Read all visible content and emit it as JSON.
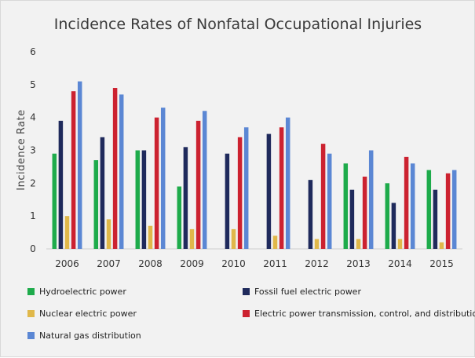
{
  "chart_data": {
    "type": "bar",
    "title": "Incidence Rates of Nonfatal Occupational Injuries",
    "xlabel": "",
    "ylabel": "Incidence Rate",
    "ylim": [
      0,
      6
    ],
    "yticks": [
      0,
      1,
      2,
      3,
      4,
      5,
      6
    ],
    "grid": false,
    "legend_position": "bottom",
    "categories": [
      "2006",
      "2007",
      "2008",
      "2009",
      "2010",
      "2011",
      "2012",
      "2013",
      "2014",
      "2015"
    ],
    "series": [
      {
        "name": "Hydroelectric power",
        "color": "#1eab4b",
        "values": [
          2.9,
          2.7,
          3.0,
          1.9,
          null,
          null,
          null,
          2.6,
          2.0,
          2.4
        ]
      },
      {
        "name": "Fossil fuel electric power",
        "color": "#1f2a5c",
        "values": [
          3.9,
          3.4,
          3.0,
          3.1,
          2.9,
          3.5,
          2.1,
          1.8,
          1.4,
          1.8
        ]
      },
      {
        "name": "Nuclear electric power",
        "color": "#e0b84a",
        "values": [
          1.0,
          0.9,
          0.7,
          0.6,
          0.6,
          0.4,
          0.3,
          0.3,
          0.3,
          0.2
        ]
      },
      {
        "name": "Electric power transmission, control, and distribution",
        "color": "#cc2230",
        "values": [
          4.8,
          4.9,
          4.0,
          3.9,
          3.4,
          3.7,
          3.2,
          2.2,
          2.8,
          2.3
        ]
      },
      {
        "name": "Natural gas distribution",
        "color": "#5b87d4",
        "values": [
          5.1,
          4.7,
          4.3,
          4.2,
          3.7,
          4.0,
          2.9,
          3.0,
          2.6,
          2.4
        ]
      }
    ]
  }
}
